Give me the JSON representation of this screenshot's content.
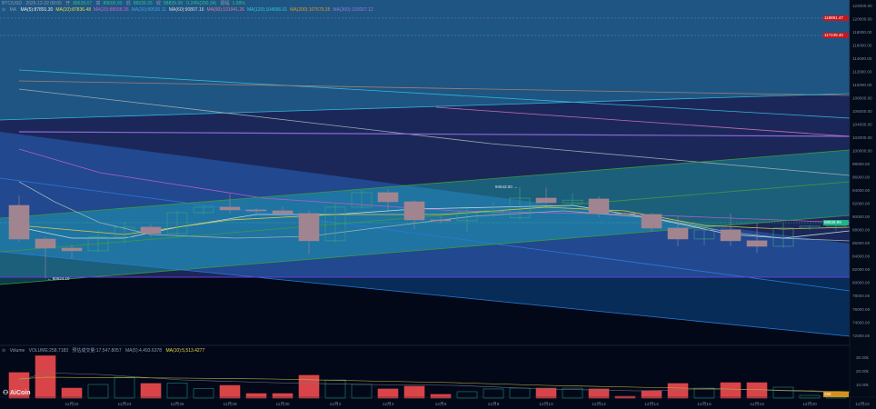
{
  "header": {
    "symbol": "BTC/USD",
    "datetime": "2025-12-22 08:00",
    "open_label": "开",
    "open": "88639.67",
    "high_label": "高",
    "high": "89600.00",
    "low_label": "低",
    "low": "88639.35",
    "close_label": "收",
    "close": "88839.99",
    "change_label": "0.24%(200.34)",
    "amplitude_label": "振幅",
    "amplitude": "1.08%",
    "ma_label": "MA",
    "ma": [
      {
        "text": "MA(5):87891.30",
        "color": "#e6e6e6"
      },
      {
        "text": "MA(10):87836.48",
        "color": "#e8d94a"
      },
      {
        "text": "MA(20):88558.36",
        "color": "#d35fd3"
      },
      {
        "text": "MA(30):89530.11",
        "color": "#3aa0e8"
      },
      {
        "text": "MA(60):90807.16",
        "color": "#d8d8d8"
      },
      {
        "text": "MA(90):101941.26",
        "color": "#e07aa8"
      },
      {
        "text": "MA(120):104656.01",
        "color": "#2fc6e0"
      },
      {
        "text": "MA(200):107679.35",
        "color": "#e0943a"
      },
      {
        "text": "MA(360):101607.12",
        "color": "#9a7ae0"
      }
    ]
  },
  "volume_header": {
    "title": "Volume",
    "volume": "VOLUME:258.7183",
    "estimate": "预估成交量:17,547.8057",
    "ma5": "MA(5):4,493.6378",
    "ma10": "MA(10):5,513.4277"
  },
  "price_tags": {
    "tag_high": "118891.47",
    "tag_second": "117249.40",
    "current": "88839.99",
    "volume_current": "258",
    "colors": {
      "red": "#c4171f",
      "green": "#1db38a",
      "orange": "#d4901e"
    }
  },
  "logo": "AiCoin",
  "chart_data": {
    "type": "candlestick",
    "ylim": [
      72000,
      122000
    ],
    "y_ticks": [
      "122000.00",
      "120000.00",
      "118000.00",
      "116000.00",
      "114000.00",
      "112000.00",
      "110000.00",
      "108000.00",
      "106000.00",
      "104000.00",
      "102000.00",
      "100000.00",
      "98000.00",
      "96000.00",
      "94000.00",
      "92000.00",
      "90000.00",
      "88000.00",
      "86000.00",
      "84000.00",
      "82000.00",
      "80000.00",
      "78000.00",
      "76000.00",
      "74000.00",
      "72000.00"
    ],
    "x_ticks": [
      "11月22",
      "11月24",
      "11月26",
      "11月28",
      "11月30",
      "12月2",
      "12月4",
      "12月6",
      "12月8",
      "12月10",
      "12月12",
      "12月14",
      "12月16",
      "12月18",
      "12月20",
      "12月22"
    ],
    "annotations": {
      "high_marker": "94543.00",
      "low_marker": "80624.10"
    },
    "candles": [
      {
        "date": "11-20",
        "o": 91700,
        "h": 93200,
        "l": 86200,
        "c": 86600
      },
      {
        "date": "11-21",
        "o": 86600,
        "h": 87000,
        "l": 80624.1,
        "c": 85230
      },
      {
        "date": "11-22",
        "o": 85230,
        "h": 85700,
        "l": 83700,
        "c": 84820
      },
      {
        "date": "11-23",
        "o": 84820,
        "h": 88100,
        "l": 84500,
        "c": 86890
      },
      {
        "date": "11-24",
        "o": 86890,
        "h": 89200,
        "l": 85900,
        "c": 88400
      },
      {
        "date": "11-25",
        "o": 88400,
        "h": 88800,
        "l": 86900,
        "c": 87440
      },
      {
        "date": "11-26",
        "o": 87440,
        "h": 90900,
        "l": 86800,
        "c": 90600
      },
      {
        "date": "11-27",
        "o": 90600,
        "h": 91800,
        "l": 90300,
        "c": 91430
      },
      {
        "date": "11-28",
        "o": 91430,
        "h": 93400,
        "l": 90500,
        "c": 91020
      },
      {
        "date": "11-29",
        "o": 91020,
        "h": 91300,
        "l": 90500,
        "c": 90880
      },
      {
        "date": "11-30",
        "o": 90880,
        "h": 91500,
        "l": 90200,
        "c": 90470
      },
      {
        "date": "12-01",
        "o": 90470,
        "h": 91000,
        "l": 84300,
        "c": 86340
      },
      {
        "date": "12-02",
        "o": 86340,
        "h": 92000,
        "l": 86100,
        "c": 91430
      },
      {
        "date": "12-03",
        "o": 91430,
        "h": 94000,
        "l": 91200,
        "c": 93630
      },
      {
        "date": "12-04",
        "o": 93630,
        "h": 94100,
        "l": 91000,
        "c": 92250
      },
      {
        "date": "12-05",
        "o": 92250,
        "h": 92500,
        "l": 88100,
        "c": 89500
      },
      {
        "date": "12-06",
        "o": 89500,
        "h": 90000,
        "l": 89000,
        "c": 89370
      },
      {
        "date": "12-07",
        "o": 89370,
        "h": 91600,
        "l": 87700,
        "c": 90600
      },
      {
        "date": "12-08",
        "o": 90600,
        "h": 92300,
        "l": 89800,
        "c": 90880
      },
      {
        "date": "12-09",
        "o": 89800,
        "h": 94543,
        "l": 89500,
        "c": 92800
      },
      {
        "date": "12-10",
        "o": 92800,
        "h": 94400,
        "l": 91900,
        "c": 92110
      },
      {
        "date": "12-11",
        "o": 92100,
        "h": 93500,
        "l": 91500,
        "c": 92500
      },
      {
        "date": "12-12",
        "o": 92670,
        "h": 93100,
        "l": 89900,
        "c": 90470
      },
      {
        "date": "12-13",
        "o": 90470,
        "h": 90700,
        "l": 90100,
        "c": 90330
      },
      {
        "date": "12-14",
        "o": 90330,
        "h": 90600,
        "l": 87800,
        "c": 88260
      },
      {
        "date": "12-15",
        "o": 88260,
        "h": 90000,
        "l": 85500,
        "c": 86610
      },
      {
        "date": "12-16",
        "o": 86610,
        "h": 88400,
        "l": 85600,
        "c": 87990
      },
      {
        "date": "12-17",
        "o": 87990,
        "h": 90500,
        "l": 85500,
        "c": 86340
      },
      {
        "date": "12-18",
        "o": 86340,
        "h": 89000,
        "l": 84500,
        "c": 85500
      },
      {
        "date": "12-19",
        "o": 85500,
        "h": 89000,
        "l": 85300,
        "c": 88260
      },
      {
        "date": "12-20",
        "o": 88260,
        "h": 88700,
        "l": 88000,
        "c": 88540
      },
      {
        "date": "12-21",
        "o": 88540,
        "h": 89200,
        "l": 87900,
        "c": 88810
      }
    ],
    "volume": {
      "ylim": [
        0,
        30000
      ],
      "y_ticks": [
        "30.00k",
        "20.00k",
        "10.00k"
      ],
      "values": [
        18700,
        31000,
        7300,
        10000,
        15300,
        10700,
        11000,
        7000,
        9300,
        3300,
        3300,
        16700,
        13300,
        10000,
        6700,
        8700,
        2700,
        4700,
        6700,
        7300,
        7300,
        7300,
        6700,
        1300,
        5300,
        10700,
        7300,
        11300,
        11300,
        8000,
        2000,
        2700
      ]
    },
    "colors": {
      "up": "#3aa583",
      "down": "#a08590",
      "vol_up": "#1d8a70",
      "vol_down": "#d94448"
    }
  }
}
